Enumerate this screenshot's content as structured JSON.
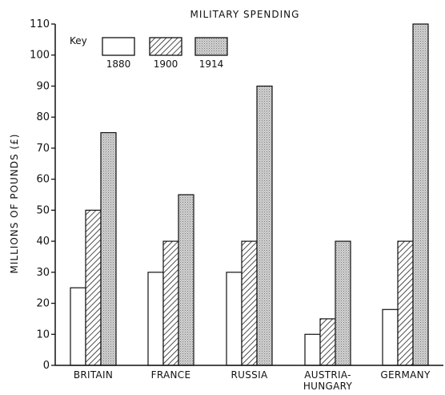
{
  "chart_data": {
    "type": "bar",
    "title": "MILITARY SPENDING",
    "ylabel": "MILLIONS OF POUNDS (£)",
    "xlabel": "",
    "ylim": [
      0,
      110
    ],
    "yticks": [
      "0",
      "10",
      "20",
      "30",
      "40",
      "50",
      "60",
      "70",
      "80",
      "90",
      "100",
      "110"
    ],
    "grid": false,
    "legend_title": "Key",
    "legend_position": "top-left",
    "categories": [
      {
        "lines": [
          "BRITAIN"
        ]
      },
      {
        "lines": [
          "FRANCE"
        ]
      },
      {
        "lines": [
          "RUSSIA"
        ]
      },
      {
        "lines": [
          "AUSTRIA-",
          "HUNGARY"
        ]
      },
      {
        "lines": [
          "GERMANY"
        ]
      }
    ],
    "series": [
      {
        "name": "1880",
        "pattern": "plain",
        "values": [
          25,
          30,
          30,
          10,
          18
        ]
      },
      {
        "name": "1900",
        "pattern": "hatch",
        "values": [
          50,
          40,
          40,
          15,
          40
        ]
      },
      {
        "name": "1914",
        "pattern": "dotted",
        "values": [
          75,
          55,
          90,
          40,
          110
        ]
      }
    ]
  }
}
